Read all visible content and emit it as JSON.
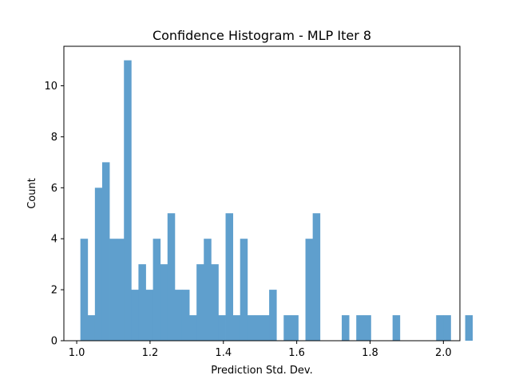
{
  "chart_data": {
    "type": "bar",
    "title": "Confidence Histogram - MLP Iter 8",
    "xlabel": "Prediction Std. Dev.",
    "ylabel": "Count",
    "bar_color": "#5f9fcd",
    "xlim": [
      0.965,
      2.045
    ],
    "ylim": [
      0,
      11.55
    ],
    "grid": false,
    "bin_start": 1.01,
    "bin_width": 0.0198,
    "values": [
      4,
      1,
      6,
      7,
      4,
      4,
      11,
      2,
      3,
      2,
      4,
      3,
      5,
      2,
      2,
      1,
      3,
      4,
      3,
      1,
      5,
      1,
      4,
      1,
      1,
      1,
      2,
      0,
      1,
      1,
      0,
      4,
      5,
      0,
      0,
      0,
      1,
      0,
      1,
      1,
      0,
      0,
      0,
      1,
      0,
      0,
      0,
      0,
      0,
      1,
      1,
      0,
      0,
      1
    ],
    "xticks": [
      {
        "value": 1.0,
        "label": "1.0"
      },
      {
        "value": 1.2,
        "label": "1.2"
      },
      {
        "value": 1.4,
        "label": "1.4"
      },
      {
        "value": 1.6,
        "label": "1.6"
      },
      {
        "value": 1.8,
        "label": "1.8"
      },
      {
        "value": 2.0,
        "label": "2.0"
      }
    ],
    "yticks": [
      {
        "value": 0,
        "label": "0"
      },
      {
        "value": 2,
        "label": "2"
      },
      {
        "value": 4,
        "label": "4"
      },
      {
        "value": 6,
        "label": "6"
      },
      {
        "value": 8,
        "label": "8"
      },
      {
        "value": 10,
        "label": "10"
      }
    ]
  }
}
